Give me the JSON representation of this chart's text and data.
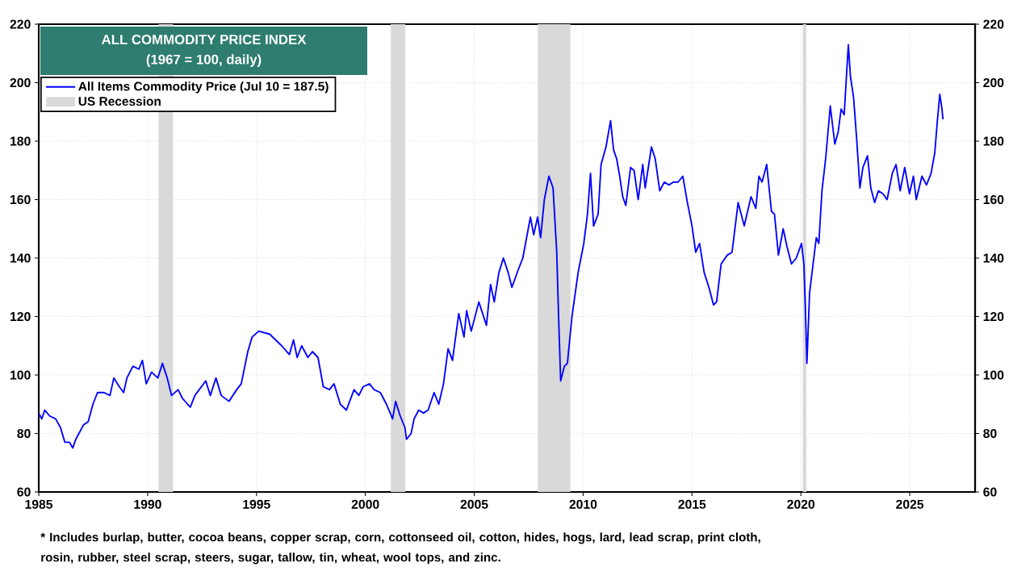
{
  "chart_data": {
    "type": "line",
    "title": "ALL COMMODITY PRICE INDEX",
    "subtitle": "(1967 = 100, daily)",
    "x": [
      "1985-01-01",
      "1985-02-21",
      "1985-04-11",
      "1985-07-01",
      "1985-10-11",
      "1986-01-01",
      "1986-03-13",
      "1986-06-02",
      "1986-07-23",
      "1986-09-13",
      "1987-01-23",
      "1987-04-08",
      "1987-06-27",
      "1987-09-13",
      "1988-01-01",
      "1988-04-08",
      "1988-06-13",
      "1988-09-13",
      "1988-11-25",
      "1989-01-19",
      "1989-04-28",
      "1989-08-07",
      "1989-10-05",
      "1989-12-09",
      "1990-03-06",
      "1990-06-20",
      "1990-09-06",
      "1990-11-25",
      "1991-02-07",
      "1991-05-25",
      "1991-08-07",
      "1991-12-17",
      "1992-03-02",
      "1992-09-02",
      "1992-11-18",
      "1993-02-21",
      "1993-05-18",
      "1993-09-27",
      "1994-02-03",
      "1994-04-19",
      "1994-08-07",
      "1994-10-19",
      "1995-02-07",
      "1995-08-07",
      "1995-11-18",
      "1996-02-28",
      "1996-07-05",
      "1996-09-13",
      "1996-11-14",
      "1997-01-28",
      "1997-05-11",
      "1997-07-26",
      "1997-10-28",
      "1998-01-26",
      "1998-05-07",
      "1998-07-23",
      "1998-11-07",
      "1999-02-18",
      "1999-06-24",
      "1999-09-13",
      "1999-11-25",
      "2000-03-09",
      "2000-05-25",
      "2000-09-09",
      "2000-12-20",
      "2001-04-01",
      "2001-05-21",
      "2001-08-07",
      "2001-10-26",
      "2001-11-21",
      "2002-02-07",
      "2002-03-27",
      "2002-06-13",
      "2002-09-02",
      "2002-11-18",
      "2003-02-28",
      "2003-05-14",
      "2003-08-03",
      "2003-10-19",
      "2004-01-01",
      "2004-04-15",
      "2004-07-12",
      "2004-08-25",
      "2004-11-11",
      "2005-03-17",
      "2005-07-23",
      "2005-10-01",
      "2005-12-02",
      "2006-02-18",
      "2006-05-03",
      "2006-07-23",
      "2006-09-24",
      "2007-01-08",
      "2007-03-24",
      "2007-07-30",
      "2007-09-24",
      "2007-11-29",
      "2008-01-19",
      "2008-03-20",
      "2008-06-06",
      "2008-08-14",
      "2008-10-15",
      "2008-11-14",
      "2008-12-20",
      "2009-02-21",
      "2009-04-11",
      "2009-06-27",
      "2009-10-08",
      "2010-01-12",
      "2010-03-13",
      "2010-05-03",
      "2010-06-24",
      "2010-09-09",
      "2010-10-28",
      "2011-01-19",
      "2011-04-05",
      "2011-05-25",
      "2011-07-15",
      "2011-09-06",
      "2011-10-26",
      "2011-12-17",
      "2012-03-06",
      "2012-05-03",
      "2012-07-12",
      "2012-09-27",
      "2012-11-07",
      "2013-02-21",
      "2013-04-23",
      "2013-07-08",
      "2013-09-24",
      "2013-12-09",
      "2014-02-25",
      "2014-05-11",
      "2014-07-30",
      "2014-10-15",
      "2015-01-01",
      "2015-03-02",
      "2015-05-07",
      "2015-07-23",
      "2015-10-11",
      "2015-12-27",
      "2016-02-18",
      "2016-05-03",
      "2016-08-14",
      "2016-11-03",
      "2017-02-14",
      "2017-05-25",
      "2017-09-17",
      "2017-12-06",
      "2018-01-28",
      "2018-03-20",
      "2018-06-06",
      "2018-08-25",
      "2018-10-15",
      "2018-12-20",
      "2019-03-09",
      "2019-05-11",
      "2019-07-26",
      "2019-10-15",
      "2020-01-12",
      "2020-02-21",
      "2020-03-17",
      "2020-04-11",
      "2020-05-25",
      "2020-07-23",
      "2020-09-17",
      "2020-10-28",
      "2020-12-20",
      "2021-02-21",
      "2021-05-07",
      "2021-07-23",
      "2021-09-17",
      "2021-11-07",
      "2021-12-27",
      "2022-03-06",
      "2022-04-11",
      "2022-06-02",
      "2022-07-23",
      "2022-09-17",
      "2022-11-07",
      "2023-01-23",
      "2023-03-17",
      "2023-05-21",
      "2023-07-23",
      "2023-10-08",
      "2023-12-17",
      "2024-03-13",
      "2024-05-14",
      "2024-07-23",
      "2024-10-08",
      "2024-12-27",
      "2025-03-02",
      "2025-04-19",
      "2025-07-23",
      "2025-10-08",
      "2025-12-24",
      "2026-02-25",
      "2026-04-08",
      "2026-05-18",
      "2026-06-24",
      "2026-07-10"
    ],
    "series": [
      {
        "name": "All Items Commodity Price (Jul 10 = 187.5)",
        "color": "#0000ff",
        "values": [
          87,
          85,
          88,
          86,
          85,
          82,
          77,
          77,
          75,
          78,
          83,
          84,
          90,
          94,
          94,
          93,
          99,
          96,
          94,
          99,
          103,
          102,
          105,
          97,
          101,
          99,
          104,
          99,
          93,
          95,
          92,
          89,
          93,
          98,
          93,
          99,
          93,
          91,
          95,
          97,
          108,
          113,
          115,
          114,
          112,
          110,
          107,
          112,
          106,
          110,
          106,
          108,
          106,
          96,
          95,
          97,
          90,
          88,
          95,
          93,
          96,
          97,
          95,
          94,
          90,
          85,
          91,
          86,
          82,
          78,
          80,
          85,
          88,
          87,
          88,
          94,
          90,
          97,
          109,
          105,
          121,
          113,
          122,
          115,
          125,
          117,
          131,
          125,
          135,
          140,
          135,
          130,
          136,
          140,
          154,
          148,
          154,
          147,
          160,
          168,
          164,
          142,
          121,
          98,
          103,
          104,
          120,
          135,
          145,
          155,
          169,
          151,
          155,
          172,
          178,
          187,
          177,
          174,
          168,
          161,
          158,
          171,
          170,
          160,
          172,
          164,
          178,
          174,
          163,
          166,
          165,
          166,
          166,
          168,
          159,
          151,
          142,
          145,
          135,
          130,
          124,
          125,
          138,
          141,
          142,
          159,
          151,
          161,
          157,
          168,
          166,
          172,
          156,
          155,
          141,
          150,
          144,
          138,
          140,
          145,
          138,
          122,
          104,
          128,
          138,
          147,
          145,
          163,
          174,
          192,
          179,
          183,
          191,
          189,
          213,
          202,
          195,
          181,
          164,
          171,
          175,
          164,
          159,
          163,
          162,
          160,
          169,
          172,
          163,
          171,
          162,
          168,
          160,
          168,
          165,
          169,
          176,
          187,
          196,
          191,
          187.5
        ]
      }
    ],
    "xlim": [
      "1985",
      "2028"
    ],
    "xticks": [
      "1985",
      "1990",
      "1995",
      "2000",
      "2005",
      "2010",
      "2015",
      "2020",
      "2025"
    ],
    "ylim": [
      60,
      220
    ],
    "yticks": [
      60,
      80,
      100,
      120,
      140,
      160,
      180,
      200,
      220
    ],
    "y2lim": [
      60,
      220
    ],
    "y2ticks": [
      60,
      80,
      100,
      120,
      140,
      160,
      180,
      200,
      220
    ],
    "bands": [
      {
        "axis": "x",
        "from": "1990-07",
        "to": "1991-03",
        "label": "US Recession",
        "color": "#d9d9d9"
      },
      {
        "axis": "x",
        "from": "2001-03",
        "to": "2001-11",
        "color": "#d9d9d9"
      },
      {
        "axis": "x",
        "from": "2007-12",
        "to": "2009-06",
        "color": "#d9d9d9"
      },
      {
        "axis": "x",
        "from": "2020-02",
        "to": "2020-04",
        "color": "#d9d9d9"
      }
    ],
    "grid": true,
    "legend": "top left",
    "annotations": [
      "* Includes burlap, butter, cocoa beans, copper scrap, corn, cottonseed oil, cotton, hides, hogs, lard, lead scrap, print cloth, rosin, rubber, steel scrap, steers, sugar, tallow, tin, wheat, wool tops, and zinc."
    ]
  }
}
